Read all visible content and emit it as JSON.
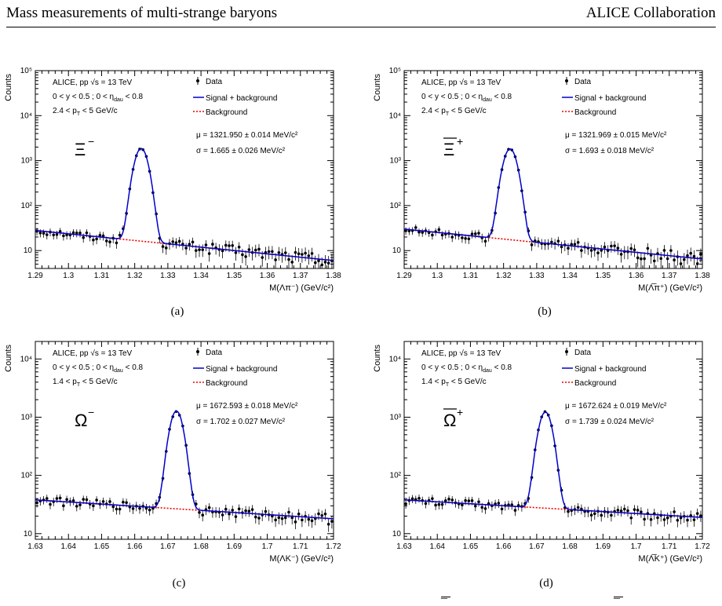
{
  "header": {
    "left": "Mass measurements of multi-strange baryons",
    "right": "ALICE Collaboration"
  },
  "figure_fragment_marks": [
    "¯",
    "¯"
  ],
  "panels": [
    {
      "caption": "(a)",
      "particle": "Ξ",
      "particle_charge": "−",
      "particle_overline": false,
      "text": {
        "line1_pre": "ALICE, pp ",
        "line1_sqrt": "√s",
        "line1_post": " = 13 TeV",
        "line2": "0 < y < 0.5 ; 0 < η",
        "line2_sub": "dau",
        "line2_end": " < 0.8",
        "line3_pre": "2.4 < p",
        "line3_sub": "T",
        "line3_post": " < 5 GeV/c",
        "mu": "μ = 1321.950 ± 0.014 MeV/c²",
        "sigma": "σ = 1.665 ± 0.026 MeV/c²"
      },
      "legend": [
        "Data",
        "Signal + background",
        "Background"
      ],
      "ylabel": "Counts",
      "xlabel": "M(Λπ⁻) (GeV/c²)",
      "xticks": [
        "1.29",
        "1.3",
        "1.31",
        "1.32",
        "1.33",
        "1.34",
        "1.35",
        "1.36",
        "1.37",
        "1.38"
      ],
      "yticks": [
        {
          "label": "10⁵",
          "v": 100000
        },
        {
          "label": "10⁴",
          "v": 10000
        },
        {
          "label": "10³",
          "v": 1000
        },
        {
          "label": "10²",
          "v": 100
        },
        {
          "label": "10",
          "v": 10
        }
      ]
    },
    {
      "caption": "(b)",
      "particle": "Ξ",
      "particle_charge": "+",
      "particle_overline": true,
      "text": {
        "line1_pre": "ALICE, pp ",
        "line1_sqrt": "√s",
        "line1_post": " = 13 TeV",
        "line2": "0 < y < 0.5 ; 0 < η",
        "line2_sub": "dau",
        "line2_end": " < 0.8",
        "line3_pre": "2.4 < p",
        "line3_sub": "T",
        "line3_post": " < 5 GeV/c",
        "mu": "μ = 1321.969 ± 0.015 MeV/c²",
        "sigma": "σ = 1.693 ± 0.018 MeV/c²"
      },
      "legend": [
        "Data",
        "Signal + background",
        "Background"
      ],
      "ylabel": "Counts",
      "xlabel": "M(Λ̅π⁺) (GeV/c²)",
      "xticks": [
        "1.29",
        "1.3",
        "1.31",
        "1.32",
        "1.33",
        "1.34",
        "1.35",
        "1.36",
        "1.37",
        "1.38"
      ],
      "yticks": [
        {
          "label": "10⁵",
          "v": 100000
        },
        {
          "label": "10⁴",
          "v": 10000
        },
        {
          "label": "10³",
          "v": 1000
        },
        {
          "label": "10²",
          "v": 100
        },
        {
          "label": "10",
          "v": 10
        }
      ]
    },
    {
      "caption": "(c)",
      "particle": "Ω",
      "particle_charge": "−",
      "particle_overline": false,
      "text": {
        "line1_pre": "ALICE, pp ",
        "line1_sqrt": "√s",
        "line1_post": " = 13 TeV",
        "line2": "0 < y < 0.5 ; 0 < η",
        "line2_sub": "dau",
        "line2_end": " < 0.8",
        "line3_pre": "1.4 < p",
        "line3_sub": "T",
        "line3_post": " < 5 GeV/c",
        "mu": "μ = 1672.593 ± 0.018 MeV/c²",
        "sigma": "σ = 1.702 ± 0.027 MeV/c²"
      },
      "legend": [
        "Data",
        "Signal + background",
        "Background"
      ],
      "ylabel": "Counts",
      "xlabel": "M(ΛK⁻) (GeV/c²)",
      "xticks": [
        "1.63",
        "1.64",
        "1.65",
        "1.66",
        "1.67",
        "1.68",
        "1.69",
        "1.7",
        "1.71",
        "1.72"
      ],
      "yticks": [
        {
          "label": "10⁴",
          "v": 10000
        },
        {
          "label": "10³",
          "v": 1000
        },
        {
          "label": "10²",
          "v": 100
        },
        {
          "label": "10",
          "v": 10
        }
      ]
    },
    {
      "caption": "(d)",
      "particle": "Ω",
      "particle_charge": "+",
      "particle_overline": true,
      "text": {
        "line1_pre": "ALICE, pp ",
        "line1_sqrt": "√s",
        "line1_post": " = 13 TeV",
        "line2": "0 < y < 0.5 ; 0 < η",
        "line2_sub": "dau",
        "line2_end": " < 0.8",
        "line3_pre": "1.4 < p",
        "line3_sub": "T",
        "line3_post": " < 5 GeV/c",
        "mu": "μ = 1672.624 ± 0.019 MeV/c²",
        "sigma": "σ = 1.739 ± 0.024 MeV/c²"
      },
      "legend": [
        "Data",
        "Signal + background",
        "Background"
      ],
      "ylabel": "Counts",
      "xlabel": "M(Λ̅K⁺) (GeV/c²)",
      "xticks": [
        "1.63",
        "1.64",
        "1.65",
        "1.66",
        "1.67",
        "1.68",
        "1.69",
        "1.7",
        "1.71",
        "1.72"
      ],
      "yticks": [
        {
          "label": "10⁴",
          "v": 10000
        },
        {
          "label": "10³",
          "v": 1000
        },
        {
          "label": "10²",
          "v": 100
        },
        {
          "label": "10",
          "v": 10
        }
      ]
    }
  ],
  "colors": {
    "signal": "#0000cc",
    "background": "#ee0000",
    "data": "#000000"
  },
  "chart_data": [
    {
      "type": "scatter",
      "xlim": [
        1.29,
        1.38
      ],
      "ylim": [
        4,
        100000
      ],
      "yscale": "log",
      "ylabel": "Counts",
      "xlabel": "M(Λπ⁻) (GeV/c²)",
      "legend_position": "top-center",
      "series": [
        {
          "name": "Data",
          "style": "points"
        },
        {
          "name": "Signal + background",
          "style": "line",
          "model": {
            "mu": 1.32195,
            "sigma": 0.001665,
            "peak": 1850,
            "bkg_left": 28,
            "bkg_right": 6
          }
        },
        {
          "name": "Background",
          "style": "dotted",
          "model": {
            "bkg_left": 28,
            "bkg_right": 6
          }
        }
      ]
    },
    {
      "type": "scatter",
      "xlim": [
        1.29,
        1.38
      ],
      "ylim": [
        4,
        100000
      ],
      "yscale": "log",
      "ylabel": "Counts",
      "xlabel": "M(Λ̅π⁺) (GeV/c²)",
      "legend_position": "top-center",
      "series": [
        {
          "name": "Data",
          "style": "points"
        },
        {
          "name": "Signal + background",
          "style": "line",
          "model": {
            "mu": 1.321969,
            "sigma": 0.001693,
            "peak": 1800,
            "bkg_left": 30,
            "bkg_right": 6.5
          }
        },
        {
          "name": "Background",
          "style": "dotted",
          "model": {
            "bkg_left": 30,
            "bkg_right": 6.5
          }
        }
      ]
    },
    {
      "type": "scatter",
      "xlim": [
        1.63,
        1.72
      ],
      "ylim": [
        8,
        20000
      ],
      "yscale": "log",
      "ylabel": "Counts",
      "xlabel": "M(ΛK⁻) (GeV/c²)",
      "legend_position": "top-center",
      "series": [
        {
          "name": "Data",
          "style": "points"
        },
        {
          "name": "Signal + background",
          "style": "line",
          "model": {
            "mu": 1.672593,
            "sigma": 0.001702,
            "peak": 1250,
            "bkg_left": 38,
            "bkg_right": 18
          }
        },
        {
          "name": "Background",
          "style": "dotted",
          "model": {
            "bkg_left": 38,
            "bkg_right": 18
          }
        }
      ]
    },
    {
      "type": "scatter",
      "xlim": [
        1.63,
        1.72
      ],
      "ylim": [
        8,
        20000
      ],
      "yscale": "log",
      "ylabel": "Counts",
      "xlabel": "M(Λ̅K⁺) (GeV/c²)",
      "legend_position": "top-center",
      "series": [
        {
          "name": "Data",
          "style": "points"
        },
        {
          "name": "Signal + background",
          "style": "line",
          "model": {
            "mu": 1.672624,
            "sigma": 0.001739,
            "peak": 1200,
            "bkg_left": 38,
            "bkg_right": 19
          }
        },
        {
          "name": "Background",
          "style": "dotted",
          "model": {
            "bkg_left": 38,
            "bkg_right": 19
          }
        }
      ]
    }
  ]
}
